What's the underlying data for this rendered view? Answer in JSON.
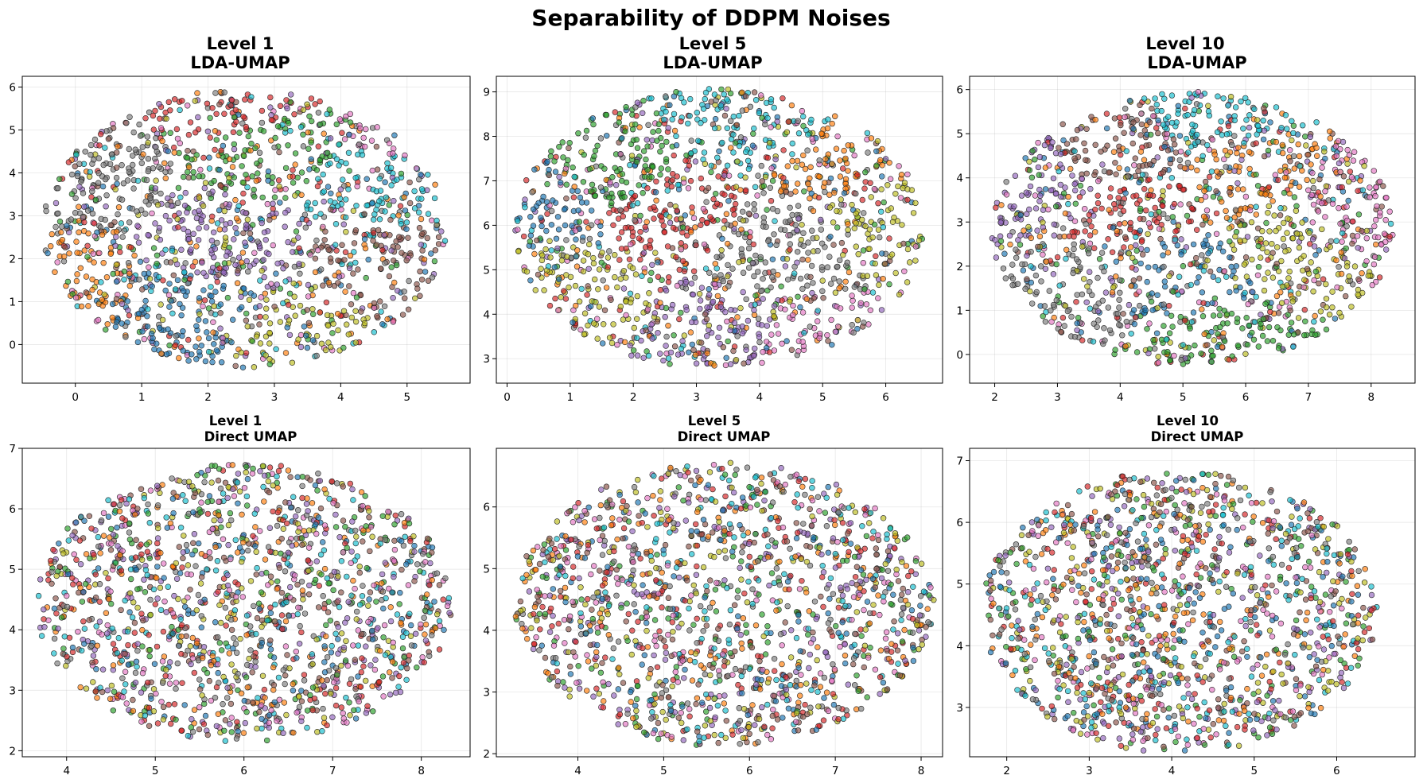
{
  "figure": {
    "suptitle": "Separability of DDPM Noises"
  },
  "palette": [
    "#1f77b4",
    "#ff7f0e",
    "#2ca02c",
    "#d62728",
    "#9467bd",
    "#8c564b",
    "#e377c2",
    "#7f7f7f",
    "#bcbd22",
    "#17becf"
  ],
  "chart_data": [
    {
      "type": "scatter",
      "title_line1": "Level 1",
      "title_line2": "LDA-UMAP",
      "xlim": [
        -0.8,
        5.95
      ],
      "ylim": [
        -0.9,
        6.25
      ],
      "xticks": [
        0,
        1,
        2,
        3,
        4,
        5
      ],
      "yticks": [
        0,
        1,
        2,
        3,
        4,
        5,
        6
      ],
      "cloud": {
        "cx": 2.55,
        "cy": 2.7,
        "rx": 3.05,
        "ry": 3.25
      },
      "n_points": 1500,
      "grid": true,
      "clusters": [
        {
          "class": 7,
          "x": 0.0,
          "y": 3.9
        },
        {
          "class": 1,
          "x": -0.1,
          "y": 1.5
        },
        {
          "class": 3,
          "x": 2.6,
          "y": 5.6
        },
        {
          "class": 2,
          "x": 3.0,
          "y": 4.6
        },
        {
          "class": 9,
          "x": 4.6,
          "y": 3.9
        },
        {
          "class": 6,
          "x": 5.0,
          "y": 4.9
        },
        {
          "class": 4,
          "x": 2.2,
          "y": 2.3
        },
        {
          "class": 0,
          "x": 1.7,
          "y": 0.9
        },
        {
          "class": 8,
          "x": 3.6,
          "y": 0.2
        },
        {
          "class": 5,
          "x": 4.7,
          "y": 1.6
        }
      ]
    },
    {
      "type": "scatter",
      "title_line1": "Level 5",
      "title_line2": "LDA-UMAP",
      "xlim": [
        -0.17,
        6.9
      ],
      "ylim": [
        2.45,
        9.35
      ],
      "xticks": [
        0,
        1,
        2,
        3,
        4,
        5,
        6
      ],
      "yticks": [
        3,
        4,
        5,
        6,
        7,
        8,
        9
      ],
      "cloud": {
        "cx": 3.35,
        "cy": 5.92,
        "rx": 3.25,
        "ry": 3.15
      },
      "n_points": 1500,
      "grid": true,
      "clusters": [
        {
          "class": 0,
          "x": 0.6,
          "y": 6.5
        },
        {
          "class": 9,
          "x": 3.9,
          "y": 8.4
        },
        {
          "class": 3,
          "x": 2.6,
          "y": 6.3
        },
        {
          "class": 8,
          "x": 0.8,
          "y": 4.5
        },
        {
          "class": 4,
          "x": 3.6,
          "y": 3.5
        },
        {
          "class": 8,
          "x": 6.0,
          "y": 6.3
        },
        {
          "class": 2,
          "x": 1.6,
          "y": 7.3
        },
        {
          "class": 6,
          "x": 4.6,
          "y": 3.3
        },
        {
          "class": 7,
          "x": 4.3,
          "y": 5.5
        },
        {
          "class": 1,
          "x": 5.5,
          "y": 7.3
        }
      ]
    },
    {
      "type": "scatter",
      "title_line1": "Level 10",
      "title_line2": "LDA-UMAP",
      "xlim": [
        1.6,
        8.7
      ],
      "ylim": [
        -0.65,
        6.3
      ],
      "xticks": [
        2,
        3,
        4,
        5,
        6,
        7,
        8
      ],
      "yticks": [
        0,
        1,
        2,
        3,
        4,
        5,
        6
      ],
      "cloud": {
        "cx": 5.15,
        "cy": 2.85,
        "rx": 3.2,
        "ry": 3.1
      },
      "n_points": 1500,
      "grid": true,
      "clusters": [
        {
          "class": 9,
          "x": 5.5,
          "y": 5.5
        },
        {
          "class": 4,
          "x": 2.6,
          "y": 3.8
        },
        {
          "class": 7,
          "x": 3.0,
          "y": 1.4
        },
        {
          "class": 2,
          "x": 5.5,
          "y": 0.1
        },
        {
          "class": 6,
          "x": 7.8,
          "y": 3.3
        },
        {
          "class": 3,
          "x": 4.3,
          "y": 3.3
        },
        {
          "class": 8,
          "x": 6.7,
          "y": 2.6
        },
        {
          "class": 0,
          "x": 5.0,
          "y": 1.8
        },
        {
          "class": 1,
          "x": 6.0,
          "y": 3.9
        },
        {
          "class": 5,
          "x": 4.0,
          "y": 4.6
        }
      ]
    },
    {
      "type": "scatter",
      "title_line1": "Level 1",
      "title_line2": "Direct UMAP",
      "xlim": [
        3.5,
        8.55
      ],
      "ylim": [
        1.9,
        7.0
      ],
      "xticks": [
        4,
        5,
        6,
        7,
        8
      ],
      "yticks": [
        2,
        3,
        4,
        5,
        6,
        7
      ],
      "cloud": {
        "cx": 6.0,
        "cy": 4.45,
        "rx": 2.35,
        "ry": 2.3
      },
      "n_points": 1500,
      "grid": true,
      "clusters": []
    },
    {
      "type": "scatter",
      "title_line1": "Level 5",
      "title_line2": "Direct UMAP",
      "xlim": [
        3.05,
        8.25
      ],
      "ylim": [
        1.95,
        6.95
      ],
      "xticks": [
        4,
        5,
        6,
        7,
        8
      ],
      "yticks": [
        2,
        3,
        4,
        5,
        6
      ],
      "cloud": {
        "cx": 5.7,
        "cy": 4.42,
        "rx": 2.45,
        "ry": 2.3
      },
      "n_points": 1500,
      "grid": true,
      "clusters": []
    },
    {
      "type": "scatter",
      "title_line1": "Level 10",
      "title_line2": "Direct UMAP",
      "xlim": [
        1.55,
        6.95
      ],
      "ylim": [
        2.2,
        7.2
      ],
      "xticks": [
        2,
        3,
        4,
        5,
        6
      ],
      "yticks": [
        3,
        4,
        5,
        6,
        7
      ],
      "cloud": {
        "cx": 4.1,
        "cy": 4.55,
        "rx": 2.4,
        "ry": 2.3
      },
      "n_points": 1500,
      "grid": true,
      "clusters": []
    }
  ]
}
